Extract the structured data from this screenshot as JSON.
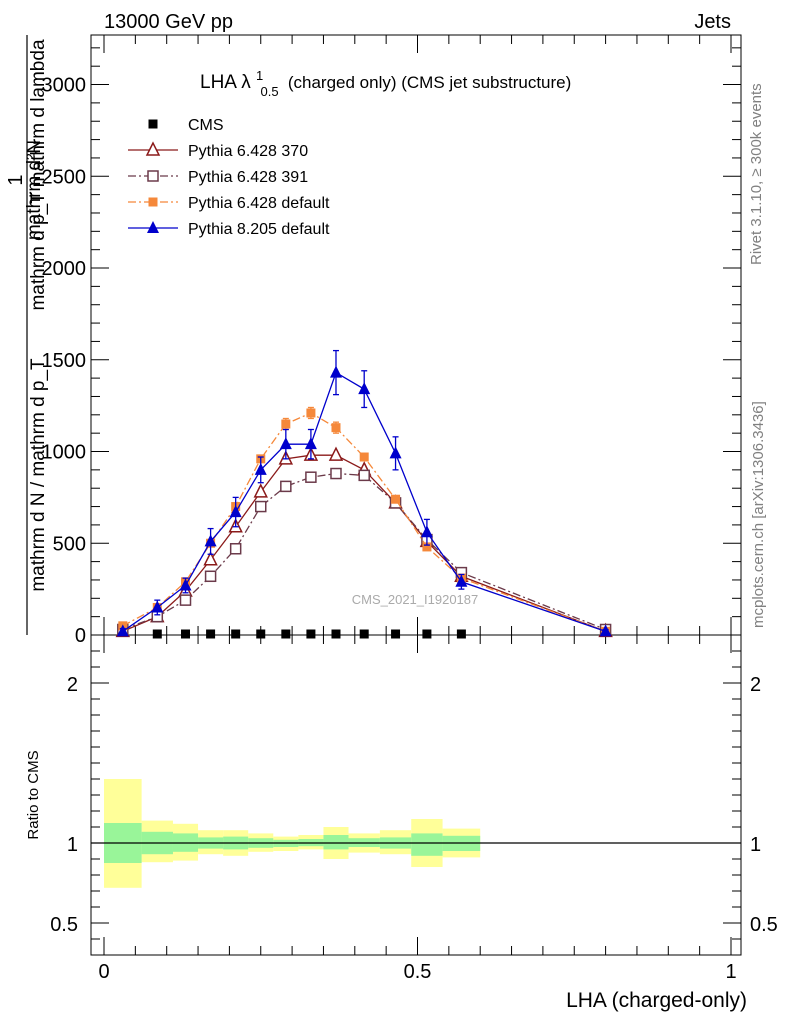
{
  "header": {
    "left": "13000 GeV pp",
    "right": "Jets"
  },
  "side_labels": {
    "rivet": "Rivet 3.1.10, ≥ 300k events",
    "mcplots": "mcplots.cern.ch [arXiv:1306.3436]"
  },
  "watermark": "CMS_2021_I1920187",
  "chart_data": {
    "type": "line",
    "title_main": "LHA λ",
    "title_sup": "1",
    "title_sub": "0.5",
    "title_rest": "(charged only) (CMS jet substructure)",
    "ylabel_numerator": "1",
    "ylabel_denominator": "mathrm d N / mathrm d p_T",
    "ylabel_right_num": "mathrm d²N",
    "ylabel_right_den": "mathrm d p_T mathrm d lambda",
    "xlabel": "LHA (charged-only)",
    "xlim": [
      0,
      1
    ],
    "ylim": [
      0,
      3270
    ],
    "xticks": [
      0,
      0.5,
      1
    ],
    "xtick_labels": [
      "0",
      "0.5",
      "1"
    ],
    "yticks": [
      0,
      500,
      1000,
      1500,
      2000,
      2500,
      3000
    ],
    "ytick_labels": [
      "0",
      "500",
      "1000",
      "1500",
      "2000",
      "2500",
      "3000"
    ],
    "legend_position": "top-left",
    "x": [
      0.03,
      0.085,
      0.13,
      0.17,
      0.21,
      0.25,
      0.29,
      0.33,
      0.37,
      0.415,
      0.465,
      0.515,
      0.57,
      0.8
    ],
    "cms_x": [
      0.085,
      0.13,
      0.17,
      0.21,
      0.25,
      0.29,
      0.33,
      0.37,
      0.415,
      0.465,
      0.515,
      0.57
    ],
    "cms_y": [
      0,
      0,
      0,
      0,
      0,
      0,
      0,
      0,
      0,
      0,
      0,
      0
    ],
    "series": [
      {
        "name": "CMS",
        "color": "#000000",
        "style": "marker-only",
        "marker": "square-filled"
      },
      {
        "name": "Pythia 6.428 370",
        "color": "#8b1a1a",
        "dash": "",
        "marker": "triangle-open",
        "values": [
          20,
          100,
          240,
          410,
          590,
          780,
          960,
          980,
          980,
          900,
          720,
          510,
          320,
          20
        ],
        "errors": [
          0,
          0,
          0,
          0,
          0,
          0,
          0,
          0,
          0,
          0,
          0,
          0,
          0,
          0
        ]
      },
      {
        "name": "Pythia 6.428 391",
        "color": "#6b3a4a",
        "dash": "8 3 2 3",
        "marker": "square-open",
        "values": [
          30,
          100,
          190,
          320,
          470,
          700,
          810,
          860,
          880,
          870,
          720,
          520,
          340,
          30
        ],
        "errors": [
          0,
          0,
          0,
          0,
          0,
          0,
          0,
          0,
          0,
          0,
          0,
          0,
          0,
          0
        ]
      },
      {
        "name": "Pythia 6.428 default",
        "color": "#f5883a",
        "dash": "8 3 2 3",
        "marker": "square-filled",
        "values": [
          50,
          150,
          290,
          500,
          700,
          960,
          1150,
          1210,
          1130,
          970,
          740,
          480,
          310,
          20
        ],
        "errors": [
          0,
          0,
          0,
          0,
          0,
          0,
          30,
          30,
          30,
          0,
          0,
          0,
          0,
          0
        ]
      },
      {
        "name": "Pythia 8.205 default",
        "color": "#0000cc",
        "dash": "",
        "marker": "triangle-filled",
        "values": [
          20,
          150,
          270,
          510,
          670,
          900,
          1040,
          1040,
          1430,
          1340,
          990,
          560,
          290,
          20
        ],
        "errors": [
          15,
          40,
          40,
          70,
          80,
          70,
          80,
          80,
          120,
          100,
          90,
          70,
          40,
          10
        ]
      }
    ],
    "ratio_panel": {
      "ylabel": "Ratio to CMS",
      "ylim": [
        0.3,
        2.3
      ],
      "yticks": [
        0.5,
        1,
        2
      ],
      "ytick_labels": [
        "0.5",
        "1",
        "2"
      ],
      "reference": 1,
      "band_edges": [
        0.0,
        0.06,
        0.11,
        0.15,
        0.19,
        0.23,
        0.27,
        0.31,
        0.35,
        0.39,
        0.44,
        0.49,
        0.54,
        0.6,
        1.0
      ],
      "green_lo": [
        0.875,
        0.93,
        0.945,
        0.965,
        0.96,
        0.97,
        0.975,
        0.98,
        0.96,
        0.975,
        0.965,
        0.92,
        0.95
      ],
      "green_hi": [
        1.125,
        1.07,
        1.06,
        1.035,
        1.04,
        1.03,
        1.02,
        1.025,
        1.05,
        1.03,
        1.035,
        1.06,
        1.045
      ],
      "yellow_lo": [
        0.72,
        0.88,
        0.89,
        0.93,
        0.92,
        0.945,
        0.95,
        0.96,
        0.9,
        0.94,
        0.93,
        0.85,
        0.91
      ],
      "yellow_hi": [
        1.4,
        1.14,
        1.12,
        1.08,
        1.08,
        1.06,
        1.04,
        1.05,
        1.1,
        1.06,
        1.08,
        1.15,
        1.09
      ]
    }
  }
}
